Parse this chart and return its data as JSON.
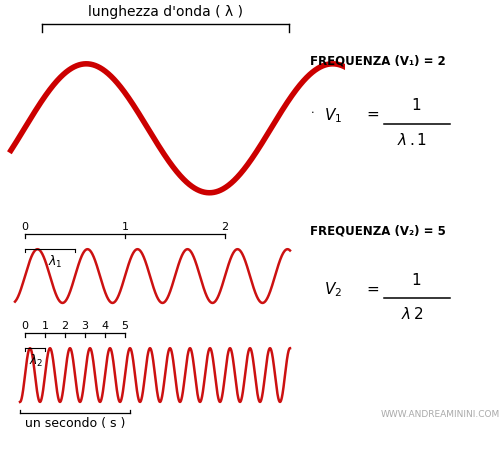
{
  "bg_color": "#ffffff",
  "wave_color_big": "#cc0000",
  "wave_color_small": "#cc1111",
  "title_text": "lunghezza d'onda ( λ )",
  "freq1_label": "FREQUENZA (V₁) = 2",
  "freq2_label": "FREQUENZA (V₂) = 5",
  "bottom_label": "un secondo ( s )",
  "watermark": "WWW.ANDREAMININI.COM",
  "lw_big": 4.0,
  "lw_small": 1.8
}
